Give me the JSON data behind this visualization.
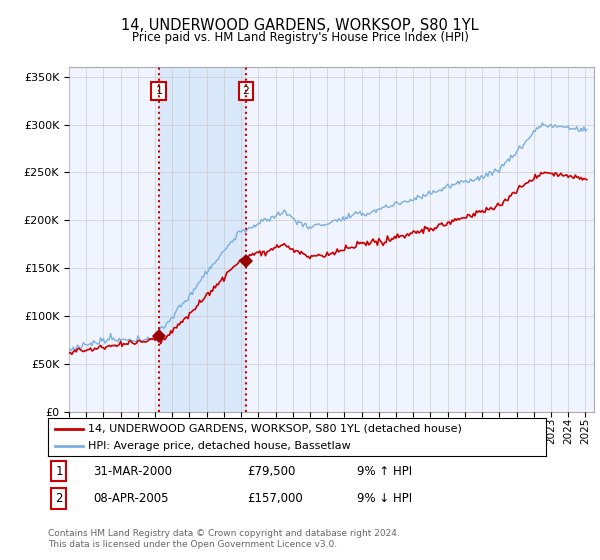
{
  "title": "14, UNDERWOOD GARDENS, WORKSOP, S80 1YL",
  "subtitle": "Price paid vs. HM Land Registry's House Price Index (HPI)",
  "ylim": [
    0,
    360000
  ],
  "xlim_start": 1995.0,
  "xlim_end": 2025.5,
  "sale1_date": 2000.21,
  "sale1_price": 79500,
  "sale1_label": "1",
  "sale2_date": 2005.27,
  "sale2_price": 157000,
  "sale2_label": "2",
  "legend_property": "14, UNDERWOOD GARDENS, WORKSOP, S80 1YL (detached house)",
  "legend_hpi": "HPI: Average price, detached house, Bassetlaw",
  "footer": "Contains HM Land Registry data © Crown copyright and database right 2024.\nThis data is licensed under the Open Government Licence v3.0.",
  "hpi_color": "#7ab0e0",
  "price_color": "#cc0000",
  "marker_label_color": "#cc0000",
  "background_plot": "#f0f4ff",
  "grid_color": "#cccccc",
  "sale_marker_color": "#990000",
  "dashed_line_color": "#cc0000",
  "shade_color": "#d0e4f8"
}
